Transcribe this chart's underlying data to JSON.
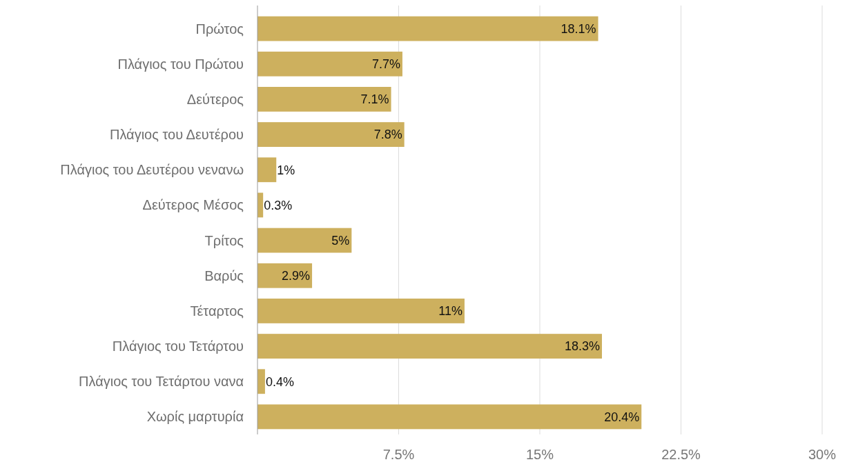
{
  "chart_data": {
    "type": "bar",
    "orientation": "horizontal",
    "categories": [
      "Πρώτος",
      "Πλάγιος του Πρώτου",
      "Δεύτερος",
      "Πλάγιος του Δευτέρου",
      "Πλάγιος του Δευτέρου νενανω",
      "Δεύτερος Μέσος",
      "Τρίτος",
      "Βαρύς",
      "Τέταρτος",
      "Πλάγιος του Τετάρτου",
      "Πλάγιος του Τετάρτου νανα",
      "Χωρίς μαρτυρία"
    ],
    "values": [
      18.1,
      7.7,
      7.1,
      7.8,
      1,
      0.3,
      5,
      2.9,
      11,
      18.3,
      0.4,
      20.4
    ],
    "value_labels": [
      "18.1%",
      "7.7%",
      "7.1%",
      "7.8%",
      "1%",
      "0.3%",
      "5%",
      "2.9%",
      "11%",
      "18.3%",
      "0.4%",
      "20.4%"
    ],
    "color": "#cdb05e",
    "xlim": [
      0,
      30
    ],
    "xticks": [
      {
        "value": 0,
        "label": null
      },
      {
        "value": 7.5,
        "label": "7.5%"
      },
      {
        "value": 15,
        "label": "15%"
      },
      {
        "value": 22.5,
        "label": "22.5%"
      },
      {
        "value": 30,
        "label": "30%"
      }
    ],
    "grid": "x"
  }
}
